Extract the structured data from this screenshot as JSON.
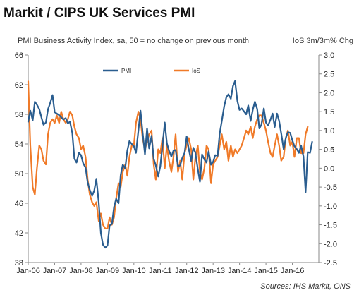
{
  "title": "Markit / CIPS UK Services PMI",
  "subtitle": "PMI Business Activity Index, sa, 50 = no change on previous month",
  "right_axis_label": "IoS 3m/3m% Chg",
  "source": "Sources: IHS Markit, ONS",
  "colors": {
    "pmi": "#2a5d8f",
    "ios": "#f07a28",
    "axis": "#888888"
  },
  "chart_data": {
    "type": "line",
    "title": "Markit / CIPS UK Services PMI",
    "subtitle": "PMI Business Activity Index, sa, 50 = no change on previous month",
    "ylabel_right": "IoS 3m/3m% Chg",
    "ylim_left": [
      38,
      66
    ],
    "yticks_left": [
      "38",
      "42",
      "46",
      "50",
      "54",
      "58",
      "62",
      "66"
    ],
    "ylim_right": [
      -2.5,
      3.0
    ],
    "yticks_right": [
      "-2.5",
      "-2.0",
      "-1.5",
      "-1.0",
      "-0.5",
      "0.0",
      "0.5",
      "1.0",
      "1.5",
      "2.0",
      "2.5",
      "3.0"
    ],
    "xlim": [
      2006.0,
      2017.0
    ],
    "xticks": [
      {
        "x": 2006,
        "label": "Jan-06"
      },
      {
        "x": 2007,
        "label": "Jan-07"
      },
      {
        "x": 2008,
        "label": "Jan-08"
      },
      {
        "x": 2009,
        "label": "Jan-09"
      },
      {
        "x": 2010,
        "label": "Jan-10"
      },
      {
        "x": 2011,
        "label": "Jan-11"
      },
      {
        "x": 2012,
        "label": "Jan-12"
      },
      {
        "x": 2013,
        "label": "Jan-13"
      },
      {
        "x": 2014,
        "label": "Jan-14"
      },
      {
        "x": 2015,
        "label": "Jan-15"
      },
      {
        "x": 2016,
        "label": "Jan-16"
      }
    ],
    "legend": [
      "PMI",
      "IoS"
    ],
    "grid": false,
    "series": [
      {
        "name": "PMI",
        "axis": "left",
        "x": [
          2006.0,
          2006.08,
          2006.17,
          2006.25,
          2006.33,
          2006.42,
          2006.5,
          2006.58,
          2006.67,
          2006.75,
          2006.83,
          2006.92,
          2007.0,
          2007.08,
          2007.17,
          2007.25,
          2007.33,
          2007.42,
          2007.5,
          2007.58,
          2007.67,
          2007.75,
          2007.83,
          2007.92,
          2008.0,
          2008.08,
          2008.17,
          2008.25,
          2008.33,
          2008.42,
          2008.5,
          2008.58,
          2008.67,
          2008.75,
          2008.83,
          2008.92,
          2009.0,
          2009.08,
          2009.17,
          2009.25,
          2009.33,
          2009.42,
          2009.5,
          2009.58,
          2009.67,
          2009.75,
          2009.83,
          2009.92,
          2010.0,
          2010.08,
          2010.17,
          2010.25,
          2010.33,
          2010.42,
          2010.5,
          2010.58,
          2010.67,
          2010.75,
          2010.83,
          2010.92,
          2011.0,
          2011.08,
          2011.17,
          2011.25,
          2011.33,
          2011.42,
          2011.5,
          2011.58,
          2011.67,
          2011.75,
          2011.83,
          2011.92,
          2012.0,
          2012.08,
          2012.17,
          2012.25,
          2012.33,
          2012.42,
          2012.5,
          2012.58,
          2012.67,
          2012.75,
          2012.83,
          2012.92,
          2013.0,
          2013.08,
          2013.17,
          2013.25,
          2013.33,
          2013.42,
          2013.5,
          2013.58,
          2013.67,
          2013.75,
          2013.83,
          2013.92,
          2014.0,
          2014.08,
          2014.17,
          2014.25,
          2014.33,
          2014.42,
          2014.5,
          2014.58,
          2014.67,
          2014.75,
          2014.83,
          2014.92,
          2015.0,
          2015.08,
          2015.17,
          2015.25,
          2015.33,
          2015.42,
          2015.5,
          2015.58,
          2015.67,
          2015.75,
          2015.83,
          2015.92,
          2016.0,
          2016.08,
          2016.17,
          2016.25,
          2016.33,
          2016.42,
          2016.5,
          2016.58,
          2016.67,
          2016.75
        ],
        "y": [
          57.0,
          58.5,
          57.2,
          59.7,
          59.3,
          58.7,
          57.6,
          56.6,
          56.9,
          58.7,
          59.5,
          60.6,
          58.3,
          58.1,
          57.9,
          57.6,
          57.3,
          57.5,
          56.8,
          57.0,
          55.5,
          52.0,
          51.5,
          52.8,
          52.5,
          51.4,
          50.8,
          48.8,
          47.8,
          47.0,
          47.7,
          49.3,
          46.1,
          42.0,
          40.4,
          40.0,
          40.3,
          43.0,
          43.2,
          45.5,
          46.6,
          46.0,
          49.8,
          51.2,
          50.7,
          53.1,
          54.4,
          54.0,
          53.7,
          52.8,
          55.8,
          58.5,
          55.6,
          52.6,
          56.1,
          53.4,
          55.1,
          52.0,
          51.1,
          49.6,
          51.0,
          53.7,
          56.9,
          54.1,
          53.1,
          52.3,
          53.1,
          53.2,
          51.0,
          51.1,
          52.1,
          52.8,
          55.0,
          53.3,
          51.7,
          53.5,
          52.8,
          50.6,
          48.9,
          52.6,
          51.9,
          51.5,
          53.0,
          51.2,
          51.6,
          52.5,
          52.4,
          55.4,
          57.1,
          59.1,
          60.3,
          60.7,
          60.1,
          61.8,
          62.5,
          59.8,
          58.6,
          58.8,
          58.4,
          58.0,
          59.2,
          57.1,
          58.6,
          59.7,
          58.7,
          56.1,
          56.6,
          58.8,
          56.9,
          56.5,
          57.3,
          58.1,
          56.3,
          58.1,
          57.1,
          55.4,
          53.3,
          54.8,
          55.6,
          55.5,
          54.5,
          53.7,
          53.3,
          52.8,
          53.8,
          52.3,
          47.5,
          52.9,
          52.8,
          54.3
        ]
      },
      {
        "name": "IoS",
        "axis": "right",
        "x": [
          2006.0,
          2006.08,
          2006.17,
          2006.25,
          2006.33,
          2006.42,
          2006.5,
          2006.58,
          2006.67,
          2006.75,
          2006.83,
          2006.92,
          2007.0,
          2007.08,
          2007.17,
          2007.25,
          2007.33,
          2007.42,
          2007.5,
          2007.58,
          2007.67,
          2007.75,
          2007.83,
          2007.92,
          2008.0,
          2008.08,
          2008.17,
          2008.25,
          2008.33,
          2008.42,
          2008.5,
          2008.58,
          2008.67,
          2008.75,
          2008.83,
          2008.92,
          2009.0,
          2009.08,
          2009.17,
          2009.25,
          2009.33,
          2009.42,
          2009.5,
          2009.58,
          2009.67,
          2009.75,
          2009.83,
          2009.92,
          2010.0,
          2010.08,
          2010.17,
          2010.25,
          2010.33,
          2010.42,
          2010.5,
          2010.58,
          2010.67,
          2010.75,
          2010.83,
          2010.92,
          2011.0,
          2011.08,
          2011.17,
          2011.25,
          2011.33,
          2011.42,
          2011.5,
          2011.58,
          2011.67,
          2011.75,
          2011.83,
          2011.92,
          2012.0,
          2012.08,
          2012.17,
          2012.25,
          2012.33,
          2012.42,
          2012.5,
          2012.58,
          2012.67,
          2012.75,
          2012.83,
          2012.92,
          2013.0,
          2013.08,
          2013.17,
          2013.25,
          2013.33,
          2013.42,
          2013.5,
          2013.58,
          2013.67,
          2013.75,
          2013.83,
          2013.92,
          2014.0,
          2014.08,
          2014.17,
          2014.25,
          2014.33,
          2014.42,
          2014.5,
          2014.58,
          2014.67,
          2014.75,
          2014.83,
          2014.92,
          2015.0,
          2015.08,
          2015.17,
          2015.25,
          2015.33,
          2015.42,
          2015.5,
          2015.58,
          2015.67,
          2015.75,
          2015.83,
          2015.92,
          2016.0,
          2016.08,
          2016.17,
          2016.25,
          2016.33,
          2016.42,
          2016.5,
          2016.58
        ],
        "y": [
          2.3,
          0.6,
          -0.5,
          -0.7,
          0.0,
          0.6,
          0.5,
          0.2,
          0.1,
          0.9,
          1.2,
          1.3,
          1.2,
          1.4,
          1.2,
          1.5,
          1.3,
          1.2,
          1.3,
          1.5,
          1.4,
          1.1,
          0.9,
          0.8,
          0.5,
          0.6,
          0.3,
          -0.3,
          -0.7,
          -0.9,
          -1.0,
          -0.9,
          -1.4,
          -1.2,
          -1.5,
          -1.6,
          -1.6,
          -1.3,
          -1.5,
          -1.3,
          -0.8,
          -0.4,
          -0.5,
          -0.1,
          0.1,
          -0.2,
          0.3,
          0.6,
          0.6,
          1.2,
          1.5,
          1.3,
          0.8,
          0.5,
          0.7,
          0.9,
          1.0,
          0.1,
          -0.3,
          0.5,
          0.4,
          0.8,
          0.0,
          0.6,
          0.2,
          -0.1,
          0.3,
          0.9,
          -0.1,
          0.2,
          -0.3,
          0.4,
          0.6,
          0.8,
          0.5,
          -0.3,
          0.3,
          0.6,
          -0.1,
          -0.3,
          0.0,
          0.6,
          0.5,
          -0.4,
          0.1,
          0.2,
          0.3,
          0.6,
          0.9,
          0.5,
          0.7,
          0.2,
          0.6,
          0.3,
          0.5,
          0.4,
          0.5,
          0.6,
          0.8,
          1.0,
          0.9,
          1.1,
          0.8,
          1.1,
          1.3,
          1.4,
          1.4,
          1.2,
          1.0,
          0.7,
          0.4,
          0.3,
          0.6,
          0.9,
          0.6,
          0.2,
          0.3,
          0.8,
          1.0,
          0.6,
          0.7,
          0.3,
          0.8,
          0.8,
          0.4,
          0.4,
          0.9,
          1.1
        ]
      }
    ]
  }
}
